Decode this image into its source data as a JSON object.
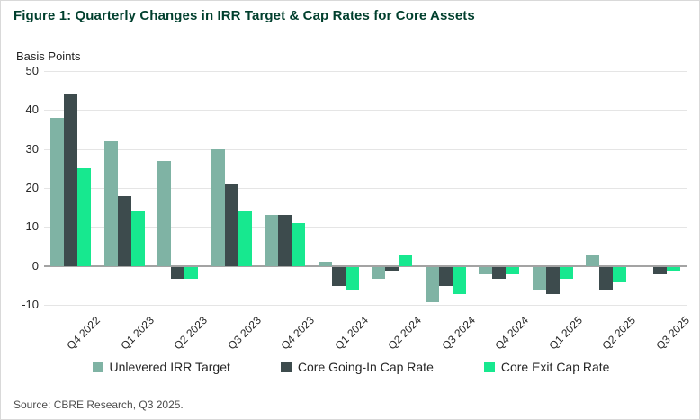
{
  "page": {
    "title": "Figure 1: Quarterly Changes in IRR Target & Cap Rates for Core Assets",
    "source": "Source: CBRE Research, Q3 2025."
  },
  "colors": {
    "title_green": "#003F2D",
    "gridline": "#e5e5e5",
    "zero_line": "#a3a3a3",
    "axis_text": "#262626"
  },
  "chart_data": {
    "type": "bar",
    "title": "Figure 1: Quarterly Changes in IRR Target & Cap Rates for Core Assets",
    "xlabel": "",
    "ylabel": "Basis Points",
    "ylim": [
      -10,
      50
    ],
    "yticks": [
      50,
      40,
      30,
      20,
      10,
      0,
      -10
    ],
    "grid": true,
    "legend_position": "bottom",
    "categories": [
      "Q4 2022",
      "Q1 2023",
      "Q2 2023",
      "Q3 2023",
      "Q4 2023",
      "Q1 2024",
      "Q2 2024",
      "Q3 2024",
      "Q4 2024",
      "Q1 2025",
      "Q2 2025",
      "Q3 2025"
    ],
    "series": [
      {
        "name": "Unlevered IRR Target",
        "color": "#7FB3A4",
        "values": [
          38,
          32,
          27,
          30,
          13,
          1,
          -3,
          -9,
          -2,
          -6,
          3,
          0
        ]
      },
      {
        "name": "Core Going-In Cap Rate",
        "color": "#3D4B4D",
        "values": [
          44,
          18,
          -3,
          21,
          13,
          -5,
          -1,
          -5,
          -3,
          -7,
          -6,
          -2
        ]
      },
      {
        "name": "Core Exit Cap Rate",
        "color": "#17E88F",
        "values": [
          25,
          14,
          -3,
          14,
          11,
          -6,
          3,
          -7,
          -2,
          -3,
          -4,
          -1
        ]
      }
    ]
  }
}
